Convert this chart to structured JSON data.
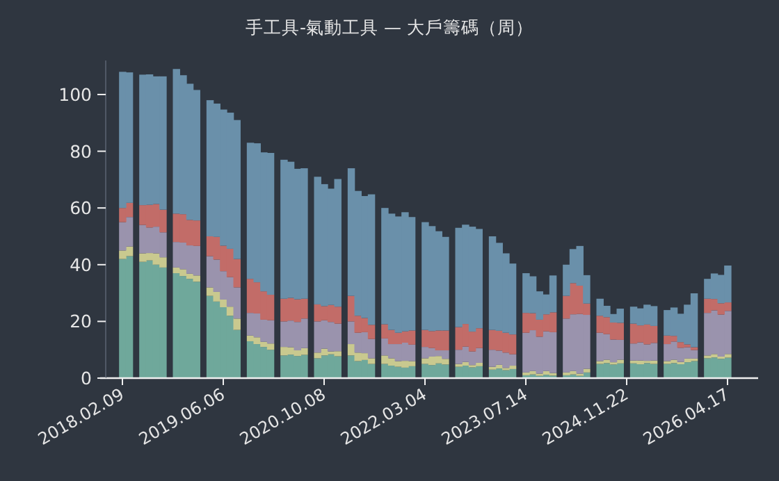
{
  "chart_data": {
    "type": "bar",
    "stacked": true,
    "title": "手工具-氣動工具 — 大戶籌碼（周）",
    "categories": [
      "2018.02.09",
      null,
      null,
      null,
      null,
      null,
      null,
      null,
      null,
      null,
      null,
      null,
      null,
      null,
      null,
      "2019.06.06",
      null,
      null,
      null,
      null,
      null,
      null,
      null,
      null,
      null,
      null,
      null,
      null,
      null,
      null,
      "2020.10.08",
      null,
      null,
      null,
      null,
      null,
      null,
      null,
      null,
      null,
      null,
      null,
      null,
      null,
      null,
      "2022.03.04",
      null,
      null,
      null,
      null,
      null,
      null,
      null,
      null,
      null,
      null,
      null,
      null,
      null,
      null,
      "2023.07.14",
      null,
      null,
      null,
      null,
      null,
      null,
      null,
      null,
      null,
      null,
      null,
      null,
      null,
      null,
      "2024.11.22",
      null,
      null,
      null,
      null,
      null,
      null,
      null,
      null,
      null,
      null,
      null,
      null,
      null,
      null,
      "2026.04.17"
    ],
    "series": [
      {
        "color": "#6fa89b",
        "values": [
          42,
          43,
          null,
          41,
          41.5,
          40,
          39,
          null,
          37,
          36,
          35,
          34,
          null,
          29,
          27,
          25,
          22,
          17,
          null,
          13,
          12,
          11,
          10,
          null,
          8,
          8.3,
          7.8,
          8.2,
          null,
          7,
          8,
          8.4,
          7.7,
          null,
          8,
          6,
          6.4,
          5,
          null,
          5,
          4.4,
          4,
          3.7,
          4.2,
          null,
          5,
          4.6,
          5.2,
          4.8,
          null,
          4,
          4.4,
          3.8,
          4.2,
          null,
          3,
          3.4,
          2.8,
          3.2,
          null,
          1,
          1.3,
          0.8,
          1.2,
          0.9,
          null,
          1,
          1.3,
          0.8,
          2,
          null,
          5,
          5.3,
          4.8,
          5.2,
          null,
          5.2,
          4.9,
          5.3,
          5,
          null,
          5,
          5.3,
          4.9,
          5.6,
          6,
          null,
          7,
          7.3,
          6.8,
          7.2
        ]
      },
      {
        "color": "#c9c98f",
        "values": [
          3,
          3.4,
          null,
          3,
          2.6,
          4,
          3.6,
          null,
          2,
          2.4,
          1.8,
          2.2,
          null,
          3,
          3.4,
          2.7,
          3.2,
          4,
          null,
          2,
          2.4,
          1.8,
          2.2,
          null,
          3,
          2.6,
          2,
          2.4,
          null,
          2,
          2.4,
          1,
          1.8,
          null,
          4,
          3,
          2.4,
          2,
          null,
          3,
          2.6,
          2,
          2.4,
          1.8,
          null,
          2,
          3,
          2.6,
          2,
          null,
          1,
          1.3,
          0.8,
          1.2,
          null,
          1,
          1.3,
          0.8,
          1.2,
          null,
          1,
          1.2,
          0.8,
          1.3,
          0.9,
          null,
          1,
          1.2,
          0.8,
          1.3,
          null,
          1,
          1.2,
          0.8,
          1.3,
          null,
          1,
          1.3,
          0.8,
          1.2,
          null,
          1,
          1.2,
          0.8,
          1.3,
          0.9,
          null,
          1,
          1.2,
          0.8,
          1.3
        ]
      },
      {
        "color": "#9a93ad",
        "values": [
          10,
          10.4,
          null,
          10,
          9,
          9.4,
          8.8,
          null,
          9,
          9.4,
          10,
          10.4,
          null,
          11,
          11.4,
          10,
          10.4,
          11,
          null,
          8,
          8.4,
          7.8,
          8.2,
          null,
          9,
          9.4,
          10,
          10.4,
          null,
          11,
          10,
          10.4,
          9.7,
          null,
          8,
          7,
          7.4,
          6.8,
          null,
          6,
          5,
          6,
          6.4,
          5.8,
          null,
          4,
          3,
          2,
          3,
          null,
          5,
          5.4,
          4.8,
          5.2,
          null,
          6,
          5,
          5.4,
          4,
          null,
          14,
          14.4,
          13,
          14,
          14.4,
          null,
          19,
          20,
          21,
          19,
          null,
          10,
          9,
          8,
          7,
          null,
          6,
          6.4,
          5.8,
          6.2,
          null,
          6,
          6.4,
          5,
          4,
          3,
          null,
          15,
          15.4,
          14.8,
          15.2
        ]
      },
      {
        "color": "#c26c68",
        "values": [
          5,
          5,
          null,
          7,
          8,
          8,
          8,
          null,
          10,
          10,
          9,
          9,
          null,
          7,
          8,
          9,
          10,
          10,
          null,
          12,
          11,
          10,
          9,
          null,
          8,
          8,
          8,
          7,
          null,
          6,
          5,
          6,
          6,
          null,
          9,
          6,
          5,
          5,
          null,
          5,
          5,
          4,
          4,
          5,
          null,
          6,
          6,
          7,
          7,
          null,
          8,
          8,
          7,
          7,
          null,
          7,
          7,
          7,
          7,
          null,
          7,
          6,
          6,
          6,
          7,
          null,
          8,
          11,
          10,
          4,
          null,
          6,
          6,
          6,
          6,
          null,
          7,
          6,
          7,
          6,
          null,
          3,
          2,
          2,
          1,
          1,
          null,
          5,
          4,
          4,
          3
        ]
      },
      {
        "color": "#6a90aa",
        "values": [
          48,
          46,
          null,
          46,
          46,
          45,
          47,
          null,
          51,
          49,
          48,
          46,
          null,
          48,
          47,
          48,
          48,
          49,
          null,
          48,
          49,
          49,
          50,
          null,
          49,
          48,
          46,
          46,
          null,
          45,
          43,
          41,
          45,
          null,
          45,
          44,
          43,
          46,
          null,
          41,
          41,
          41,
          42,
          40,
          null,
          38,
          37,
          35,
          33,
          null,
          35,
          35,
          37,
          35,
          null,
          33,
          31,
          28,
          25,
          null,
          14,
          13,
          10,
          7,
          13,
          null,
          11,
          12,
          14,
          10,
          null,
          6,
          4,
          3,
          5,
          null,
          6,
          6,
          7,
          7,
          null,
          9,
          10,
          10,
          14,
          19,
          null,
          7,
          9,
          10,
          13
        ]
      }
    ],
    "ylim": [
      0,
      112
    ],
    "yticks": [
      0,
      20,
      40,
      60,
      80,
      100
    ]
  }
}
